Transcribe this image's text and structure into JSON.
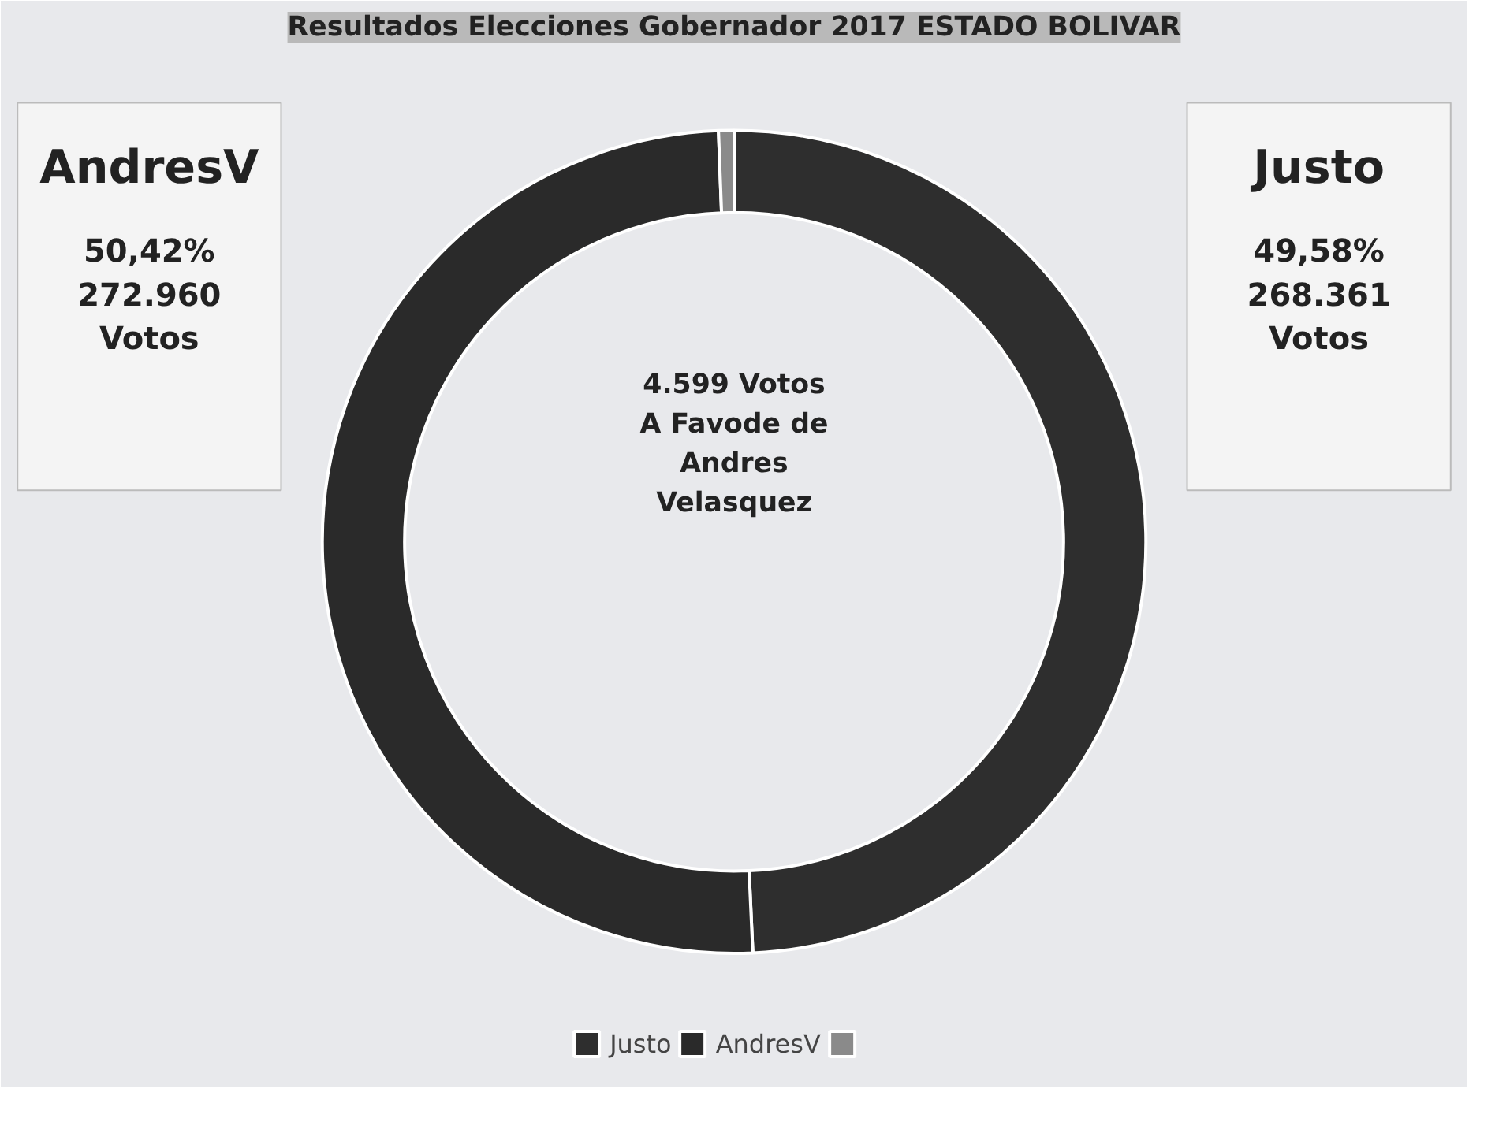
{
  "chart_data": {
    "type": "donut",
    "title": "Resultados Elecciones Gobernador 2017 ESTADO BOLIVAR",
    "categories": [
      "Justo",
      "AndresV",
      null
    ],
    "values": [
      268361,
      272960,
      3300
    ],
    "colors": [
      "#2e2e2e",
      "#2a2a2a",
      "#8a8a8a"
    ],
    "value_labels": [
      "49,58%\n268.361\nVotos",
      "50,42%\n272.960\nVotos",
      null
    ],
    "annotations": [
      "4.599 Votos\nA Favode de\nAndres\nVelasquez"
    ],
    "legend": "bottom"
  }
}
